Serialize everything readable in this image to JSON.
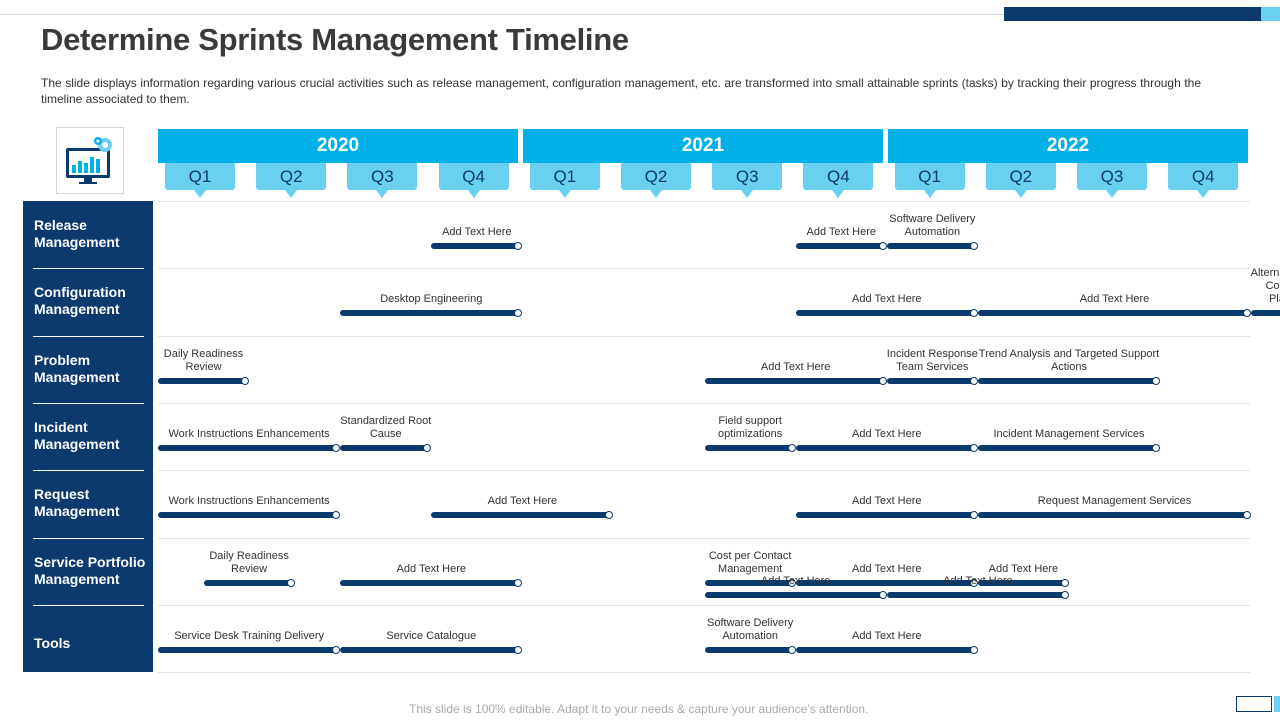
{
  "title": "Determine Sprints Management Timeline",
  "description": "The slide displays information regarding various crucial activities such as release management, configuration management, etc. are transformed into small attainable sprints (tasks) by tracking their progress through the timeline associated to them.",
  "footer": "This slide is 100% editable. Adapt it to your needs & capture your audience’s attention.",
  "colors": {
    "dark_blue": "#0a3a6e",
    "year_blue": "#00b0e6",
    "quarter_blue": "#6ad0f0"
  },
  "logo_icon": "monitor-chart-gear-icon",
  "years": [
    "2020",
    "2021",
    "2022"
  ],
  "quarters": [
    "Q1",
    "Q2",
    "Q3",
    "Q4",
    "Q1",
    "Q2",
    "Q3",
    "Q4",
    "Q1",
    "Q2",
    "Q3",
    "Q4"
  ],
  "rows": [
    {
      "label": "Release Management",
      "tasks": [
        {
          "label": "Add Text Here",
          "start": 3,
          "end": 4
        },
        {
          "label": "Add Text Here",
          "start": 7,
          "end": 8
        },
        {
          "label": "Software Delivery Automation",
          "start": 8,
          "end": 9
        }
      ]
    },
    {
      "label": "Configuration Management",
      "tasks": [
        {
          "label": "Add Text Here",
          "start": 7,
          "end": 9
        },
        {
          "label": "Add Text Here",
          "start": 9,
          "end": 12
        },
        {
          "label": "Desktop Engineering",
          "start": 2,
          "end": 4
        },
        {
          "label": "Alternative Client Computing Platforms",
          "start": 12,
          "end": 12.9
        }
      ]
    },
    {
      "label": "Problem Management",
      "tasks": [
        {
          "label": "Daily Readiness Review",
          "start": 0,
          "end": 1
        },
        {
          "label": "Add Text Here",
          "start": 6,
          "end": 8
        },
        {
          "label": "Incident Response Team Services",
          "start": 8,
          "end": 9
        },
        {
          "label": "Trend Analysis and Targeted Support Actions",
          "start": 9,
          "end": 11
        }
      ]
    },
    {
      "label": "Incident Management",
      "tasks": [
        {
          "label": "Work Instructions Enhancements",
          "start": 0,
          "end": 2
        },
        {
          "label": "Standardized Root Cause",
          "start": 2,
          "end": 3
        },
        {
          "label": "Field support optimizations",
          "start": 6,
          "end": 7
        },
        {
          "label": "Add Text Here",
          "start": 7,
          "end": 9
        },
        {
          "label": "Incident Management Services",
          "start": 9,
          "end": 11
        }
      ]
    },
    {
      "label": "Request Management",
      "tasks": [
        {
          "label": "Work Instructions Enhancements",
          "start": 0,
          "end": 2
        },
        {
          "label": "Add Text Here",
          "start": 3,
          "end": 5
        },
        {
          "label": "Add Text Here",
          "start": 7,
          "end": 9
        },
        {
          "label": "Request Management Services",
          "start": 9,
          "end": 12
        }
      ]
    },
    {
      "label": "Service Portfolio Management",
      "tasks": [
        {
          "label": "Daily Readiness Review",
          "start": 0.5,
          "end": 1.5
        },
        {
          "label": "Add Text Here",
          "start": 2,
          "end": 4
        },
        {
          "label": "Cost per Contact Management",
          "start": 6,
          "end": 7
        },
        {
          "label": "Add Text Here",
          "start": 7,
          "end": 9
        },
        {
          "label": "Add Text Here",
          "start": 9,
          "end": 10
        },
        {
          "label": "Add Text Here",
          "start": 6,
          "end": 8
        },
        {
          "label": "Add Text Here",
          "start": 8,
          "end": 10
        }
      ]
    },
    {
      "label": "Tools",
      "tasks": [
        {
          "label": "Service Desk Training Delivery",
          "start": 0,
          "end": 2
        },
        {
          "label": "Service Catalogue",
          "start": 2,
          "end": 4
        },
        {
          "label": "Software Delivery Automation",
          "start": 6,
          "end": 7
        },
        {
          "label": "Add Text Here",
          "start": 7,
          "end": 9
        }
      ]
    }
  ]
}
